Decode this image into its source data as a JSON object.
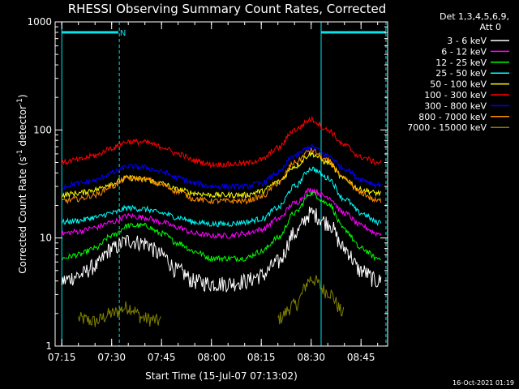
{
  "chart_data": {
    "type": "line",
    "title": "RHESSI Observing Summary Count Rates, Corrected",
    "xlabel": "Start Time (15-Jul-07 07:13:02)",
    "ylabel": "Corrected Count Rate (s^-1 detector^-1)",
    "yscale": "log",
    "ylim": [
      1,
      1000
    ],
    "xlim_minutes": [
      -2,
      98
    ],
    "x_ticks": [
      {
        "label": "07:15",
        "minute": 0
      },
      {
        "label": "07:30",
        "minute": 15
      },
      {
        "label": "07:45",
        "minute": 30
      },
      {
        "label": "08:00",
        "minute": 45
      },
      {
        "label": "08:15",
        "minute": 60
      },
      {
        "label": "08:30",
        "minute": 75
      },
      {
        "label": "08:45",
        "minute": 90
      }
    ],
    "y_ticks": [
      {
        "label": "1",
        "value": 1
      },
      {
        "label": "10",
        "value": 10
      },
      {
        "label": "100",
        "value": 100
      },
      {
        "label": "1000",
        "value": 1000
      }
    ],
    "legend_header": [
      "Det 1,3,4,5,6,9,",
      "Att 0"
    ],
    "legend_placement": "right",
    "timestamp": "16-Oct-2021 01:19",
    "annotations": [
      {
        "type": "interval_bar",
        "start_minute": 0,
        "end_minute": 17,
        "value": 800,
        "label": "N",
        "color": "#00e5ee"
      },
      {
        "type": "interval_bar",
        "start_minute": 78,
        "end_minute": 97.5,
        "value": 800,
        "color": "#00e5ee"
      },
      {
        "type": "vertical_line",
        "minute": 0,
        "style": "solid",
        "color": "#00e5ee"
      },
      {
        "type": "vertical_line",
        "minute": 17.3,
        "style": "dashed",
        "color": "#00e5ee"
      },
      {
        "type": "vertical_line",
        "minute": 78,
        "style": "solid",
        "color": "#00e5ee"
      },
      {
        "type": "vertical_line",
        "minute": 97.5,
        "style": "dashed",
        "color": "#00e5ee"
      }
    ],
    "x": [
      0,
      5,
      10,
      15,
      20,
      25,
      30,
      35,
      40,
      45,
      50,
      55,
      60,
      65,
      70,
      75,
      80,
      85,
      90,
      95
    ],
    "series": [
      {
        "name": "3 - 6 keV",
        "color": "#ffffff",
        "values": [
          4,
          4.5,
          5.5,
          8,
          9.5,
          9,
          7,
          5,
          4,
          3.8,
          3.8,
          4,
          4.5,
          6,
          11,
          17,
          14,
          8,
          5,
          4
        ]
      },
      {
        "name": "6 - 12 keV",
        "color": "#ff00ff",
        "values": [
          11,
          11.5,
          12.5,
          14,
          16,
          15.5,
          14,
          12.5,
          11,
          10.5,
          10.5,
          11,
          12,
          15,
          21,
          28,
          24,
          17,
          13,
          11
        ]
      },
      {
        "name": "12 - 25 keV",
        "color": "#00ff00",
        "values": [
          6.5,
          7,
          8,
          10.5,
          13,
          13,
          11,
          9,
          7.5,
          6.5,
          6.5,
          6.5,
          7.5,
          10,
          17,
          26,
          21,
          12,
          8,
          6.5
        ]
      },
      {
        "name": "25 - 50 keV",
        "color": "#00ffff",
        "values": [
          14,
          14.5,
          15.5,
          17,
          19,
          18.5,
          17,
          15.5,
          14,
          13.5,
          13.5,
          14,
          15,
          19,
          30,
          44,
          36,
          23,
          17,
          14
        ]
      },
      {
        "name": "50 - 100 keV",
        "color": "#ffff00",
        "values": [
          25,
          26,
          28,
          32,
          36,
          35,
          32,
          28,
          26,
          25,
          25,
          25,
          27,
          33,
          46,
          60,
          50,
          35,
          28,
          26
        ]
      },
      {
        "name": "100 - 300 keV",
        "color": "#ff0000",
        "values": [
          50,
          53,
          58,
          68,
          78,
          77,
          70,
          60,
          52,
          48,
          48,
          49,
          53,
          68,
          100,
          125,
          100,
          72,
          56,
          50
        ]
      },
      {
        "name": "300 - 800 keV",
        "color": "#0000ff",
        "values": [
          30,
          32,
          34,
          40,
          46,
          45,
          41,
          36,
          32,
          30,
          30,
          30,
          32,
          40,
          58,
          70,
          58,
          44,
          35,
          31
        ]
      },
      {
        "name": "800 - 7000 keV",
        "color": "#ff8c00",
        "values": [
          22,
          23,
          25,
          30,
          36,
          35,
          31,
          27,
          23,
          22,
          22,
          22,
          24,
          32,
          50,
          65,
          52,
          35,
          26,
          22
        ]
      },
      {
        "name": "7000 - 15000 keV",
        "color": "#808000",
        "values": [
          null,
          1.8,
          1.7,
          2,
          2.3,
          1.8,
          1.7,
          null,
          null,
          null,
          null,
          null,
          null,
          1.8,
          2.4,
          4.2,
          3.2,
          2,
          null,
          null
        ]
      }
    ]
  }
}
